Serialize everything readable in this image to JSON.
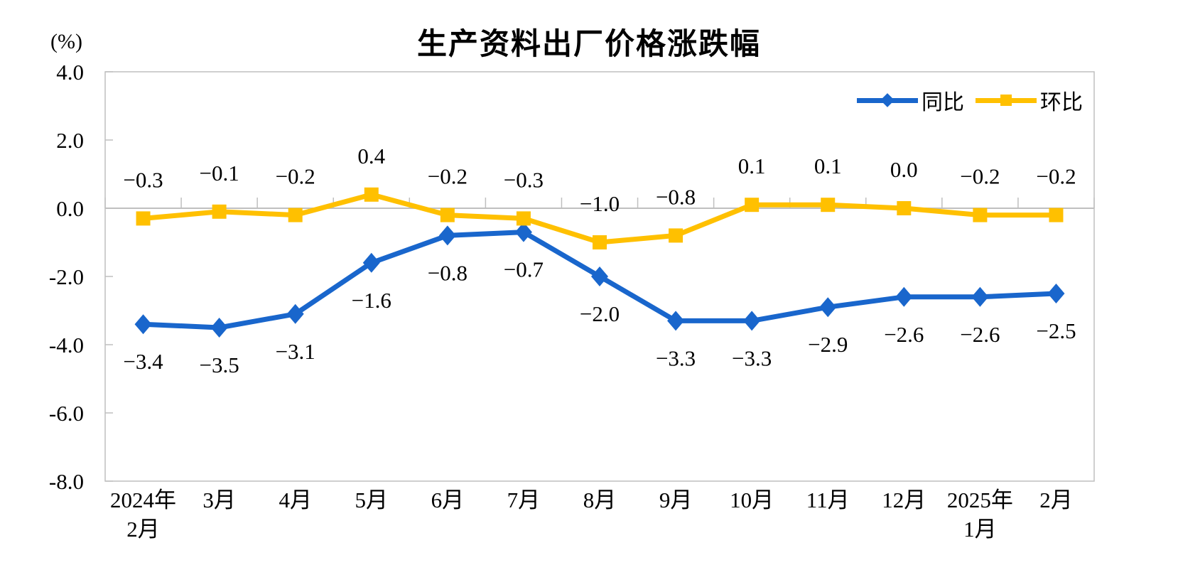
{
  "chart_data": {
    "type": "line",
    "title": "生产资料出厂价格涨跌幅",
    "ylabel": "(%)",
    "xlabel": "",
    "ylim": [
      -8.0,
      4.0
    ],
    "ytick_step": 2.0,
    "y_tick_labels": [
      "4.0",
      "2.0",
      "0.0",
      "-2.0",
      "-4.0",
      "-6.0",
      "-8.0"
    ],
    "grid": false,
    "legend_position": "top-right-inside",
    "categories": [
      "2024年\n2月",
      "3月",
      "4月",
      "5月",
      "6月",
      "7月",
      "8月",
      "9月",
      "10月",
      "11月",
      "12月",
      "2025年\n1月",
      "2月"
    ],
    "series": [
      {
        "name": "同比",
        "color": "#1966CC",
        "marker": "diamond",
        "label_position": "below",
        "values": [
          -3.4,
          -3.5,
          -3.1,
          -1.6,
          -0.8,
          -0.7,
          -2.0,
          -3.3,
          -3.3,
          -2.9,
          -2.6,
          -2.6,
          -2.5
        ]
      },
      {
        "name": "环比",
        "color": "#FFC000",
        "marker": "square",
        "label_position": "above",
        "values": [
          -0.3,
          -0.1,
          -0.2,
          0.4,
          -0.2,
          -0.3,
          -1.0,
          -0.8,
          0.1,
          0.1,
          0.0,
          -0.2,
          -0.2
        ]
      }
    ],
    "axis_color": "#BFBFBF",
    "text_color": "#000000",
    "background_color": "#FFFFFF"
  }
}
